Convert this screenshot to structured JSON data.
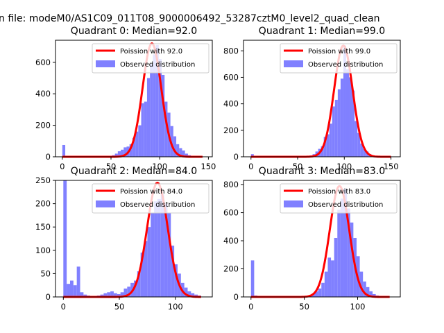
{
  "suptitle": "n file: modeM0/AS1C09_011T08_9000006492_53287cztM0_level2_quad_clean",
  "legend_labels": {
    "poisson_prefix": "Poission with",
    "observed": "Observed distribution"
  },
  "colors": {
    "hist": "#8080ff",
    "fit": "#ff0000"
  },
  "chart_data": [
    {
      "type": "bar",
      "title": "Quadrant 0: Median=92.0",
      "median": 92.0,
      "poisson_label": "Poission with 92.0",
      "xlim": [
        -7,
        154
      ],
      "ylim": [
        0,
        740
      ],
      "xticks": [
        0,
        50,
        100,
        150
      ],
      "yticks": [
        0,
        200,
        400,
        600
      ],
      "bin_width": 3,
      "fit_peak": 720,
      "fit_sigma": 9.6,
      "bins": [
        [
          0,
          75
        ],
        [
          3,
          5
        ],
        [
          48,
          5
        ],
        [
          51,
          10
        ],
        [
          54,
          20
        ],
        [
          57,
          35
        ],
        [
          60,
          45
        ],
        [
          63,
          60
        ],
        [
          66,
          65
        ],
        [
          69,
          80
        ],
        [
          72,
          120
        ],
        [
          75,
          160
        ],
        [
          78,
          200
        ],
        [
          81,
          340
        ],
        [
          84,
          350
        ],
        [
          87,
          500
        ],
        [
          90,
          590
        ],
        [
          93,
          650
        ],
        [
          96,
          710
        ],
        [
          99,
          620
        ],
        [
          102,
          520
        ],
        [
          105,
          350
        ],
        [
          108,
          280
        ],
        [
          111,
          195
        ],
        [
          114,
          130
        ],
        [
          117,
          80
        ],
        [
          120,
          55
        ],
        [
          123,
          40
        ],
        [
          126,
          20
        ],
        [
          129,
          10
        ],
        [
          132,
          5
        ],
        [
          135,
          2
        ],
        [
          138,
          2
        ],
        [
          141,
          1
        ]
      ]
    },
    {
      "type": "bar",
      "title": "Quadrant 1: Median=99.0",
      "median": 99.0,
      "poisson_label": "Poission with 99.0",
      "xlim": [
        -8,
        160
      ],
      "ylim": [
        0,
        880
      ],
      "xticks": [
        0,
        50,
        100,
        150
      ],
      "yticks": [
        0,
        200,
        400,
        600,
        800
      ],
      "bin_width": 3,
      "fit_peak": 840,
      "fit_sigma": 9.9,
      "bins": [
        [
          0,
          20
        ],
        [
          3,
          3
        ],
        [
          60,
          5
        ],
        [
          63,
          10
        ],
        [
          66,
          20
        ],
        [
          69,
          40
        ],
        [
          72,
          60
        ],
        [
          75,
          80
        ],
        [
          78,
          150
        ],
        [
          81,
          170
        ],
        [
          84,
          250
        ],
        [
          87,
          380
        ],
        [
          90,
          430
        ],
        [
          93,
          510
        ],
        [
          96,
          590
        ],
        [
          99,
          840
        ],
        [
          102,
          660
        ],
        [
          105,
          600
        ],
        [
          108,
          500
        ],
        [
          111,
          270
        ],
        [
          114,
          180
        ],
        [
          117,
          100
        ],
        [
          120,
          60
        ],
        [
          123,
          40
        ],
        [
          126,
          20
        ],
        [
          129,
          10
        ],
        [
          132,
          5
        ],
        [
          135,
          2
        ]
      ]
    },
    {
      "type": "bar",
      "title": "Quadrant 2: Median=84.0",
      "median": 84.0,
      "poisson_label": "Poission with 84.0",
      "xlim": [
        -7,
        133
      ],
      "ylim": [
        0,
        250
      ],
      "xticks": [
        0,
        50,
        100
      ],
      "yticks": [
        0,
        50,
        100,
        150,
        200,
        250
      ],
      "bin_width": 3,
      "fit_peak": 245,
      "fit_sigma": 9.2,
      "bins": [
        [
          0,
          250
        ],
        [
          3,
          28
        ],
        [
          6,
          35
        ],
        [
          9,
          25
        ],
        [
          12,
          65
        ],
        [
          15,
          10
        ],
        [
          18,
          5
        ],
        [
          21,
          3
        ],
        [
          24,
          2
        ],
        [
          27,
          2
        ],
        [
          30,
          3
        ],
        [
          33,
          5
        ],
        [
          36,
          8
        ],
        [
          39,
          10
        ],
        [
          42,
          12
        ],
        [
          45,
          8
        ],
        [
          48,
          6
        ],
        [
          51,
          10
        ],
        [
          54,
          18
        ],
        [
          57,
          22
        ],
        [
          60,
          30
        ],
        [
          63,
          35
        ],
        [
          66,
          55
        ],
        [
          69,
          95
        ],
        [
          72,
          120
        ],
        [
          75,
          150
        ],
        [
          78,
          180
        ],
        [
          81,
          205
        ],
        [
          84,
          210
        ],
        [
          87,
          220
        ],
        [
          90,
          200
        ],
        [
          93,
          180
        ],
        [
          96,
          110
        ],
        [
          99,
          70
        ],
        [
          102,
          50
        ],
        [
          105,
          30
        ],
        [
          108,
          20
        ],
        [
          111,
          12
        ],
        [
          114,
          8
        ],
        [
          117,
          5
        ],
        [
          120,
          3
        ]
      ]
    },
    {
      "type": "bar",
      "title": "Quadrant 3: Median=83.0",
      "median": 83.0,
      "poisson_label": "Poission with 83.0",
      "xlim": [
        -7,
        140
      ],
      "ylim": [
        0,
        830
      ],
      "xticks": [
        0,
        50,
        100
      ],
      "yticks": [
        0,
        200,
        400,
        600,
        800
      ],
      "bin_width": 3,
      "fit_peak": 790,
      "fit_sigma": 9.1,
      "bins": [
        [
          0,
          260
        ],
        [
          3,
          10
        ],
        [
          51,
          5
        ],
        [
          54,
          10
        ],
        [
          57,
          20
        ],
        [
          60,
          40
        ],
        [
          63,
          60
        ],
        [
          66,
          100
        ],
        [
          69,
          180
        ],
        [
          72,
          280
        ],
        [
          75,
          260
        ],
        [
          78,
          420
        ],
        [
          81,
          620
        ],
        [
          84,
          700
        ],
        [
          87,
          770
        ],
        [
          90,
          630
        ],
        [
          93,
          530
        ],
        [
          96,
          420
        ],
        [
          99,
          290
        ],
        [
          102,
          180
        ],
        [
          105,
          110
        ],
        [
          108,
          70
        ],
        [
          111,
          40
        ],
        [
          114,
          20
        ],
        [
          117,
          10
        ],
        [
          120,
          5
        ]
      ]
    }
  ]
}
